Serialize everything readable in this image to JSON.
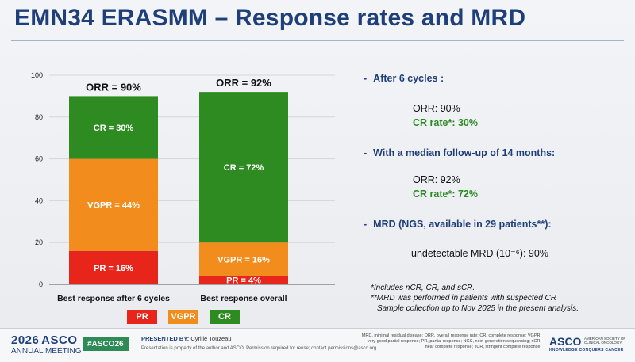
{
  "title": "EMN34 ERASMM – Response rates and MRD",
  "colors": {
    "PR": "#e8251b",
    "VGPR": "#f28c1d",
    "CR": "#2e8b22",
    "title": "#1f3f7a"
  },
  "chart_data": {
    "type": "bar",
    "stacked": true,
    "categories": [
      "Best response after 6 cycles",
      "Best response overall"
    ],
    "series": [
      {
        "name": "PR",
        "values": [
          16,
          4
        ],
        "labels": [
          "PR = 16%",
          "PR = 4%"
        ]
      },
      {
        "name": "VGPR",
        "values": [
          44,
          16
        ],
        "labels": [
          "VGPR = 44%",
          "VGPR = 16%"
        ]
      },
      {
        "name": "CR",
        "values": [
          30,
          72
        ],
        "labels": [
          "CR = 30%",
          "CR = 72%"
        ]
      }
    ],
    "totals": [
      "ORR = 90%",
      "ORR = 92%"
    ],
    "ylim": [
      0,
      100
    ],
    "yticks": [
      0,
      20,
      40,
      60,
      80,
      100
    ],
    "grid": true,
    "legend": "bottom"
  },
  "legend": [
    "PR",
    "VGPR",
    "CR"
  ],
  "bullets": [
    {
      "head": "After 6 cycles :",
      "lines": [
        "ORR: 90%",
        "CR rate*: 30%"
      ]
    },
    {
      "head": "With a median follow-up of 14 months:",
      "lines": [
        "ORR: 92%",
        "CR rate*: 72%"
      ]
    },
    {
      "head": "MRD (NGS, available in 29 patients**):",
      "lines": [
        "undetectable MRD (10⁻⁶): 90%"
      ]
    }
  ],
  "footnotes": [
    "*Includes nCR, CR, and sCR.",
    "**MRD was performed in patients with suspected CR",
    "Sample collection up to Nov 2025 in the present analysis."
  ],
  "footer": {
    "meeting_year": "2026",
    "meeting_name": "ASCO",
    "meeting_sub": "ANNUAL MEETING",
    "hashtag": "#ASCO26",
    "presented_by_label": "PRESENTED BY:",
    "presenter": "Cyrille Touzeau",
    "rights": "Presentation is property of the author and ASCO. Permission required for reuse; contact permissions@asco.org",
    "abbreviations": "MRD, minimal residual disease; ORR, overall response rate; CR, complete response; VGPR, very good partial response; PR, partial response; NGS, next-generation sequencing; nCR, near complete response; sCR, stringent complete response.",
    "asco_logo": "ASCO",
    "asco_society": "AMERICAN SOCIETY OF CLINICAL ONCOLOGY",
    "asco_tagline": "KNOWLEDGE CONQUERS CANCER"
  }
}
